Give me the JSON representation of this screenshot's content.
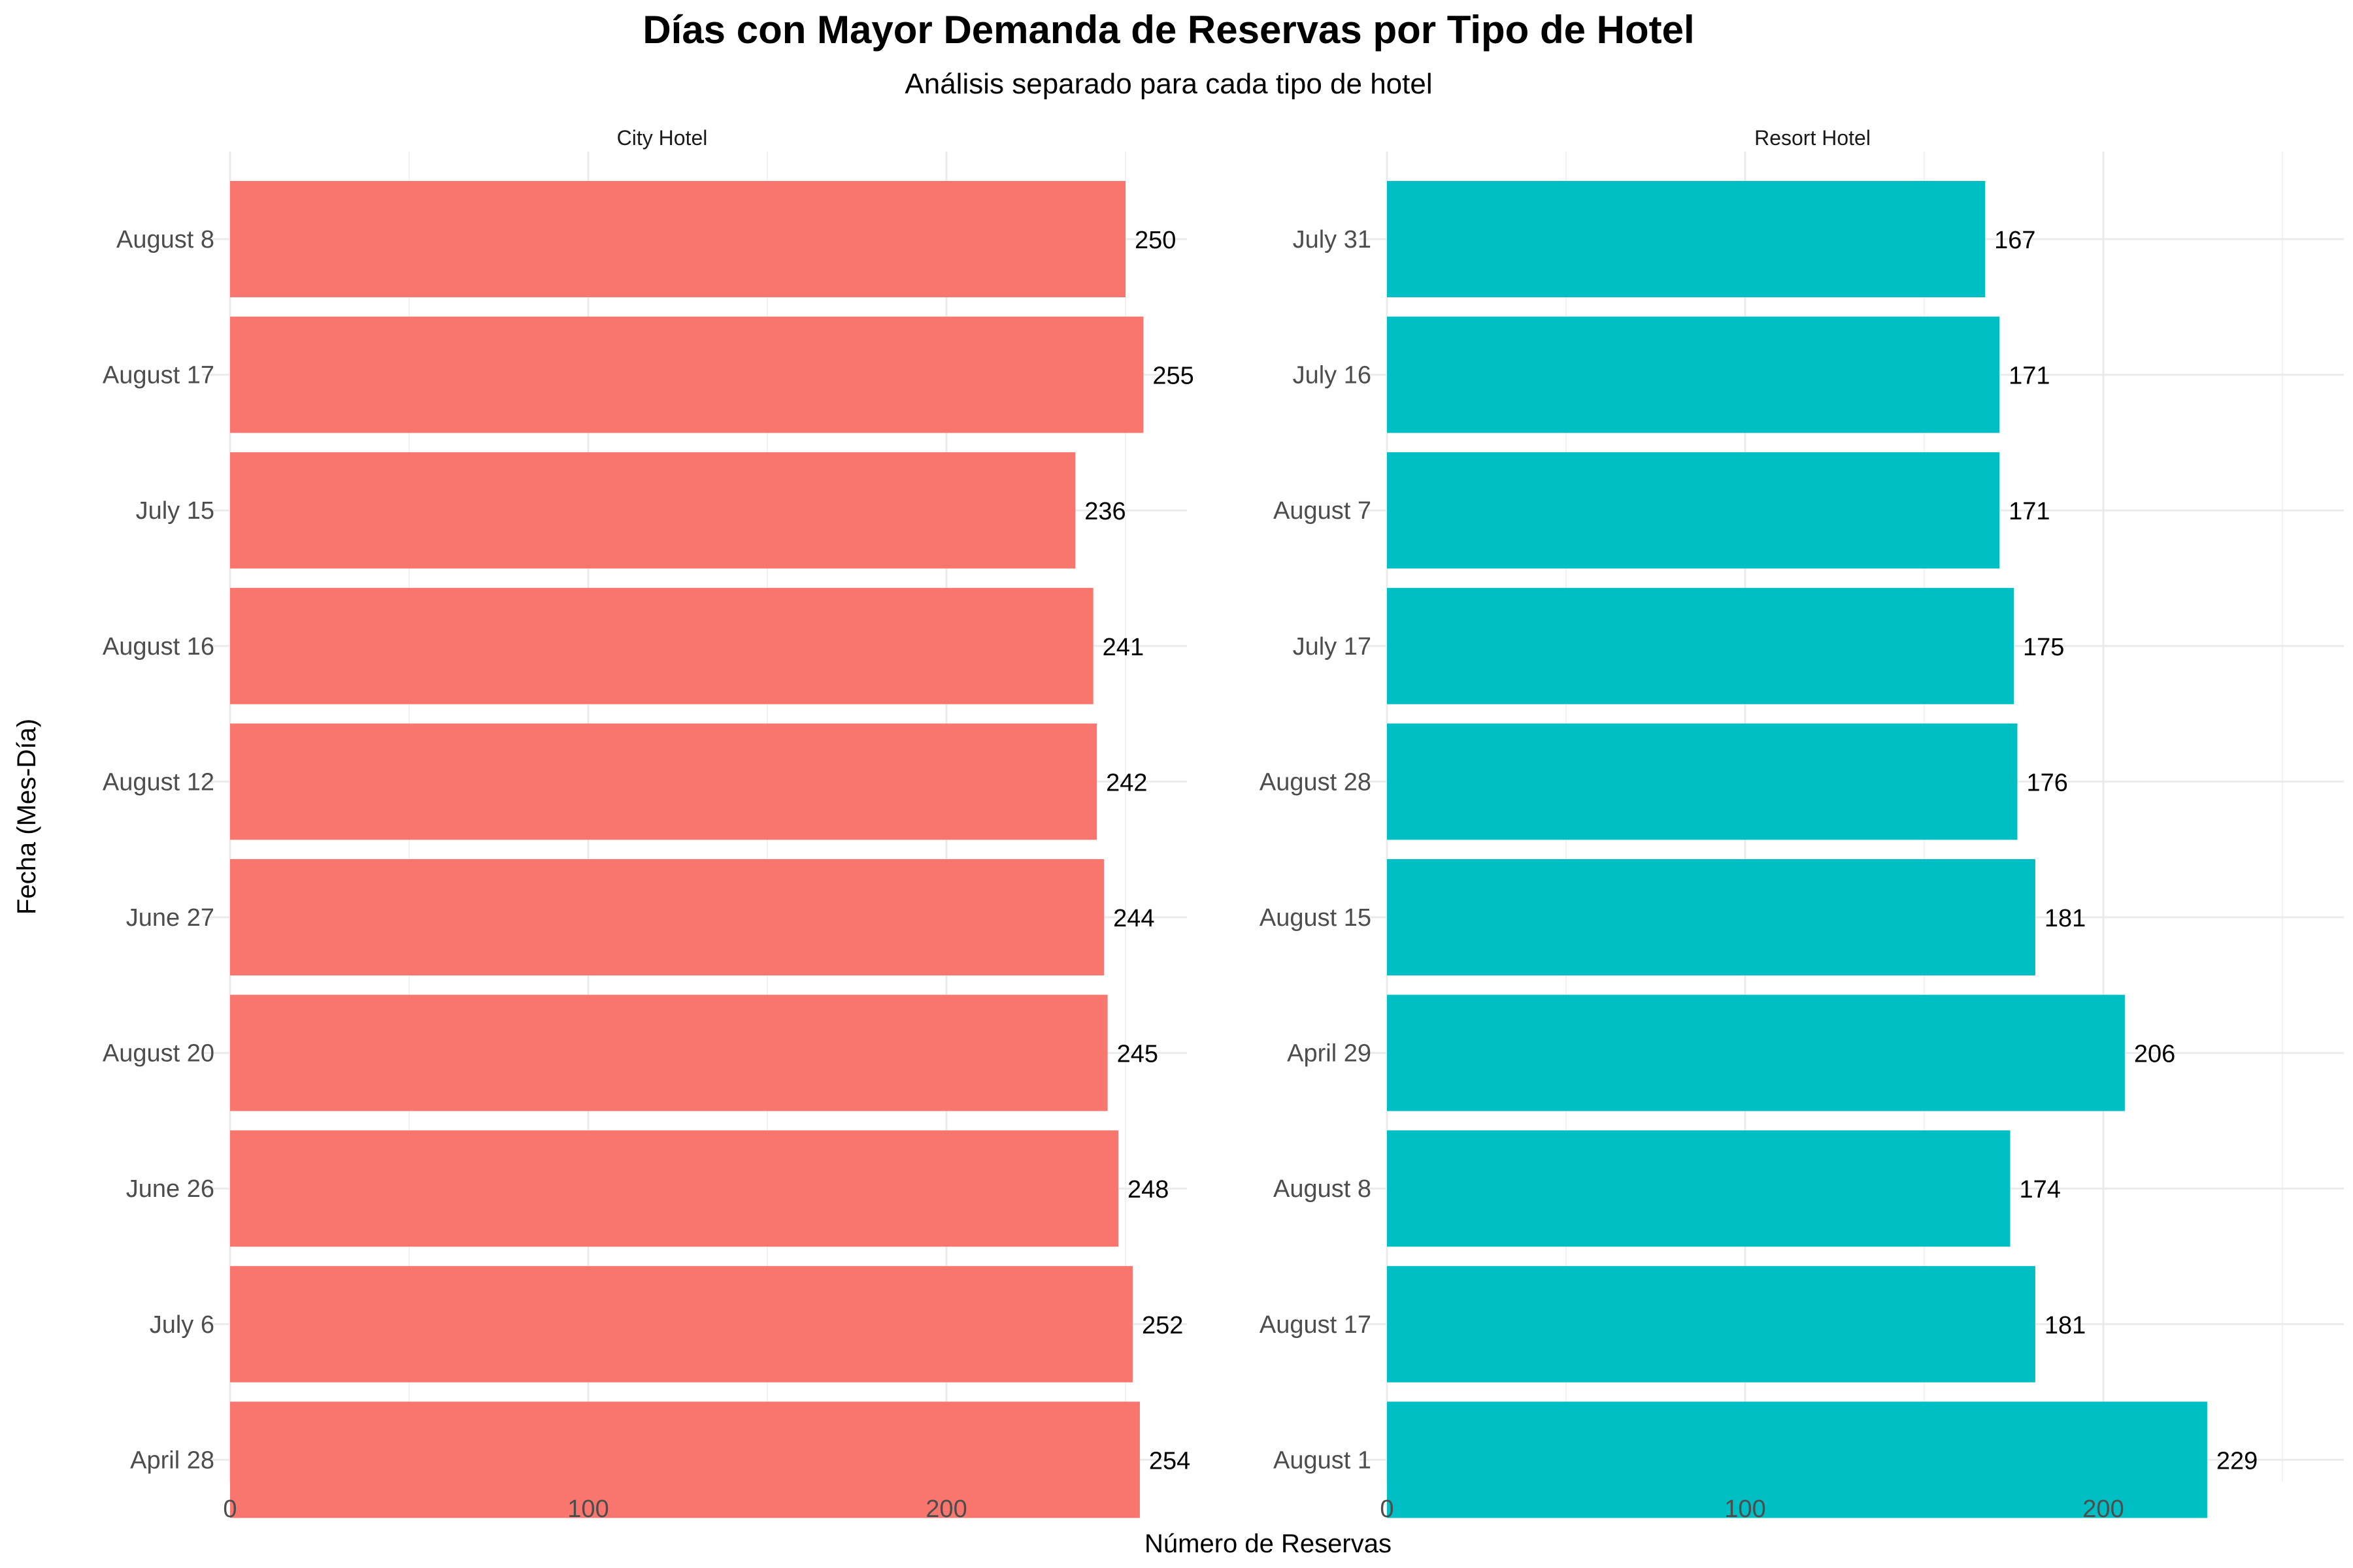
{
  "chart_data": {
    "type": "bar",
    "orientation": "horizontal",
    "title": "Días con Mayor Demanda de Reservas por Tipo de Hotel",
    "subtitle": "Análisis separado para cada tipo de hotel",
    "xlabel": "Número de Reservas",
    "ylabel": "Fecha (Mes-Día)",
    "grid": true,
    "legend": "none",
    "panels": [
      {
        "name": "City Hotel",
        "color": "#F8766D",
        "xlim": [
          0,
          268
        ],
        "xticks": [
          0,
          100,
          200
        ],
        "categories": [
          "August 8",
          "August 17",
          "July 15",
          "August 16",
          "August 12",
          "June 27",
          "August 20",
          "June 26",
          "July 6",
          "April 28"
        ],
        "values": [
          250,
          255,
          236,
          241,
          242,
          244,
          245,
          248,
          252,
          254
        ],
        "labels": [
          "250",
          "255",
          "236",
          "241",
          "242",
          "244",
          "245",
          "248",
          "252",
          "254"
        ]
      },
      {
        "name": "Resort Hotel",
        "color": "#00BFC4",
        "xlim": [
          0,
          268
        ],
        "xticks": [
          0,
          100,
          200
        ],
        "categories": [
          "July 31",
          "July 16",
          "August 7",
          "July 17",
          "August 28",
          "August 15",
          "April 29",
          "August 8",
          "August 17",
          "August 1"
        ],
        "values": [
          167,
          171,
          171,
          175,
          176,
          181,
          206,
          174,
          181,
          229
        ],
        "labels": [
          "167",
          "171",
          "171",
          "175",
          "176",
          "181",
          "206",
          "174",
          "181",
          "229"
        ]
      }
    ]
  }
}
